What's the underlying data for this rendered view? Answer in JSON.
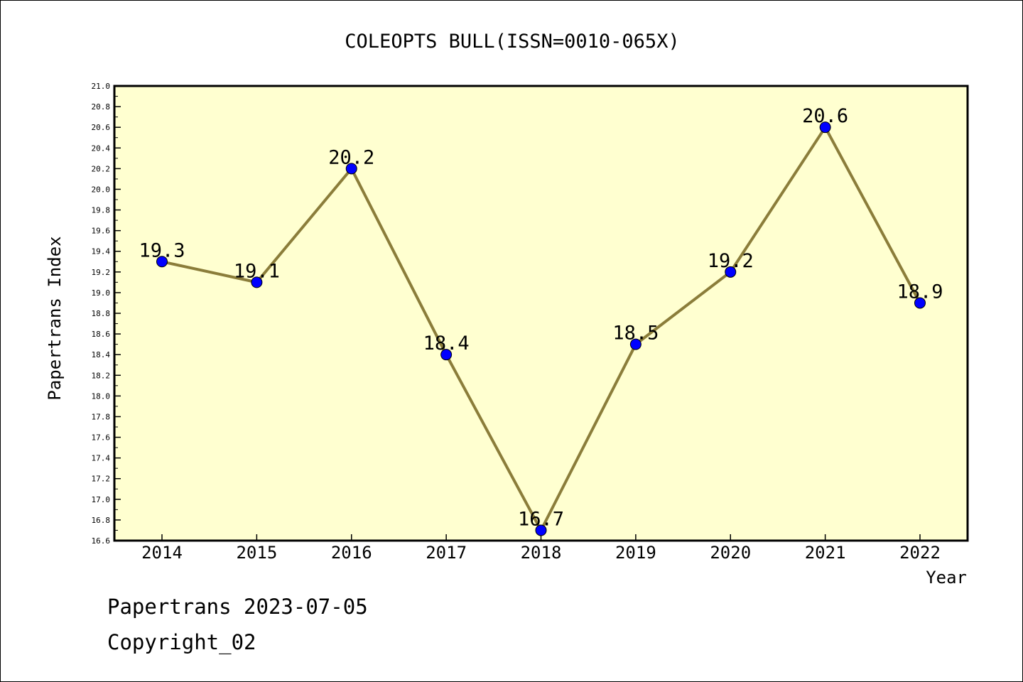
{
  "chart_data": {
    "type": "line",
    "title": "COLEOPTS BULL(ISSN=0010-065X)",
    "xlabel": "Year",
    "ylabel": "Papertrans Index",
    "categories": [
      "2014",
      "2015",
      "2016",
      "2017",
      "2018",
      "2019",
      "2020",
      "2021",
      "2022"
    ],
    "series": [
      {
        "values": [
          19.3,
          19.1,
          20.2,
          18.4,
          16.7,
          18.5,
          19.2,
          20.6,
          18.9
        ],
        "data_labels": [
          "19.3",
          "19.1",
          "20.2",
          "18.4",
          "16.7",
          "18.5",
          "19.2",
          "20.6",
          "18.9"
        ]
      }
    ],
    "ylim": [
      16.6,
      21.0
    ],
    "yticks": [
      "16.6",
      "16.8",
      "17.0",
      "17.2",
      "17.4",
      "17.6",
      "17.8",
      "18.0",
      "18.2",
      "18.4",
      "18.6",
      "18.8",
      "19.0",
      "19.2",
      "19.4",
      "19.6",
      "19.8",
      "20.0",
      "20.2",
      "20.4",
      "20.6",
      "20.8",
      "21.0"
    ],
    "grid": false,
    "legend": "none",
    "colors": {
      "plot_background": "#ffffd0",
      "line": "#8b7d3a",
      "marker": "#0000ff",
      "axis": "#000000"
    }
  },
  "footer": {
    "line1": "Papertrans 2023-07-05",
    "line2": "Copyright_02"
  }
}
